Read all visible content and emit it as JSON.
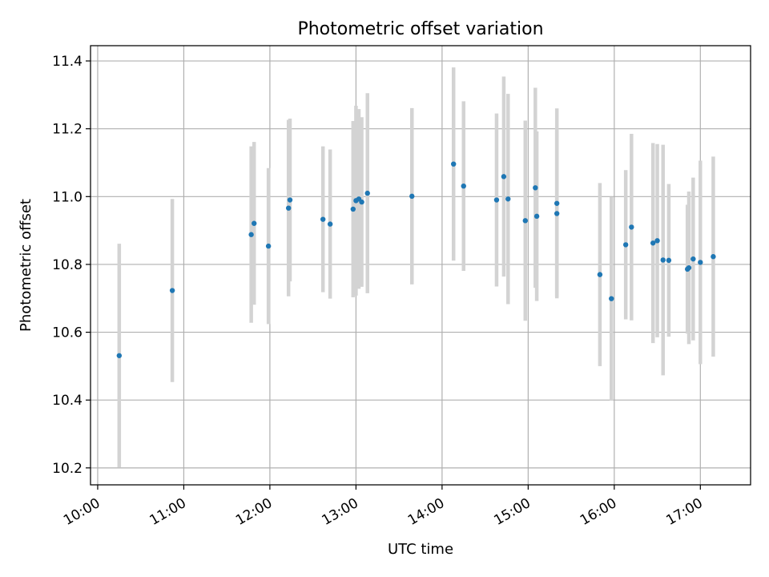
{
  "chart_data": {
    "type": "scatter",
    "title": "Photometric offset variation",
    "xlabel": "UTC time",
    "ylabel": "Photometric offset",
    "xlim": [
      "09:55",
      "17:35"
    ],
    "ylim": [
      10.15,
      11.445
    ],
    "x_ticks": [
      "10:00",
      "11:00",
      "12:00",
      "13:00",
      "14:00",
      "15:00",
      "16:00",
      "17:00"
    ],
    "y_ticks": [
      "10.2",
      "10.4",
      "10.6",
      "10.8",
      "11.0",
      "11.2",
      "11.4"
    ],
    "grid": true,
    "colors": {
      "point": "#1f77b4",
      "errorbar": "#d3d3d3",
      "grid": "#b0b0b0",
      "axes": "#000000"
    },
    "series": [
      {
        "points": [
          {
            "x": "10:15",
            "y": 10.531,
            "err": 0.33
          },
          {
            "x": "10:52",
            "y": 10.723,
            "err": 0.27
          },
          {
            "x": "11:47",
            "y": 10.888,
            "err": 0.26
          },
          {
            "x": "11:49",
            "y": 10.921,
            "err": 0.24
          },
          {
            "x": "11:59",
            "y": 10.854,
            "err": 0.23
          },
          {
            "x": "12:13",
            "y": 10.966,
            "err": 0.26
          },
          {
            "x": "12:14",
            "y": 10.99,
            "err": 0.24
          },
          {
            "x": "12:37",
            "y": 10.933,
            "err": 0.215
          },
          {
            "x": "12:42",
            "y": 10.919,
            "err": 0.22
          },
          {
            "x": "12:58",
            "y": 10.963,
            "err": 0.26
          },
          {
            "x": "13:00",
            "y": 10.988,
            "err": 0.28
          },
          {
            "x": "13:02",
            "y": 10.993,
            "err": 0.265
          },
          {
            "x": "13:04",
            "y": 10.984,
            "err": 0.25
          },
          {
            "x": "13:08",
            "y": 11.01,
            "err": 0.295
          },
          {
            "x": "13:39",
            "y": 11.001,
            "err": 0.26
          },
          {
            "x": "14:08",
            "y": 11.096,
            "err": 0.285
          },
          {
            "x": "14:15",
            "y": 11.031,
            "err": 0.25
          },
          {
            "x": "14:38",
            "y": 10.99,
            "err": 0.255
          },
          {
            "x": "14:43",
            "y": 11.059,
            "err": 0.295
          },
          {
            "x": "14:46",
            "y": 10.993,
            "err": 0.31
          },
          {
            "x": "14:58",
            "y": 10.929,
            "err": 0.295
          },
          {
            "x": "15:05",
            "y": 11.026,
            "err": 0.295
          },
          {
            "x": "15:06",
            "y": 10.942,
            "err": 0.25
          },
          {
            "x": "15:20",
            "y": 10.95,
            "err": 0.245
          },
          {
            "x": "15:20",
            "y": 10.98,
            "err": 0.28
          },
          {
            "x": "15:50",
            "y": 10.77,
            "err": 0.27
          },
          {
            "x": "15:58",
            "y": 10.699,
            "err": 0.3
          },
          {
            "x": "16:08",
            "y": 10.858,
            "err": 0.22
          },
          {
            "x": "16:12",
            "y": 10.91,
            "err": 0.275
          },
          {
            "x": "16:27",
            "y": 10.863,
            "err": 0.295
          },
          {
            "x": "16:30",
            "y": 10.87,
            "err": 0.285
          },
          {
            "x": "16:34",
            "y": 10.813,
            "err": 0.34
          },
          {
            "x": "16:38",
            "y": 10.812,
            "err": 0.225
          },
          {
            "x": "16:51",
            "y": 10.786,
            "err": 0.19
          },
          {
            "x": "16:52",
            "y": 10.79,
            "err": 0.225
          },
          {
            "x": "16:55",
            "y": 10.816,
            "err": 0.24
          },
          {
            "x": "17:00",
            "y": 10.806,
            "err": 0.3
          },
          {
            "x": "17:09",
            "y": 10.823,
            "err": 0.295
          }
        ]
      }
    ]
  }
}
